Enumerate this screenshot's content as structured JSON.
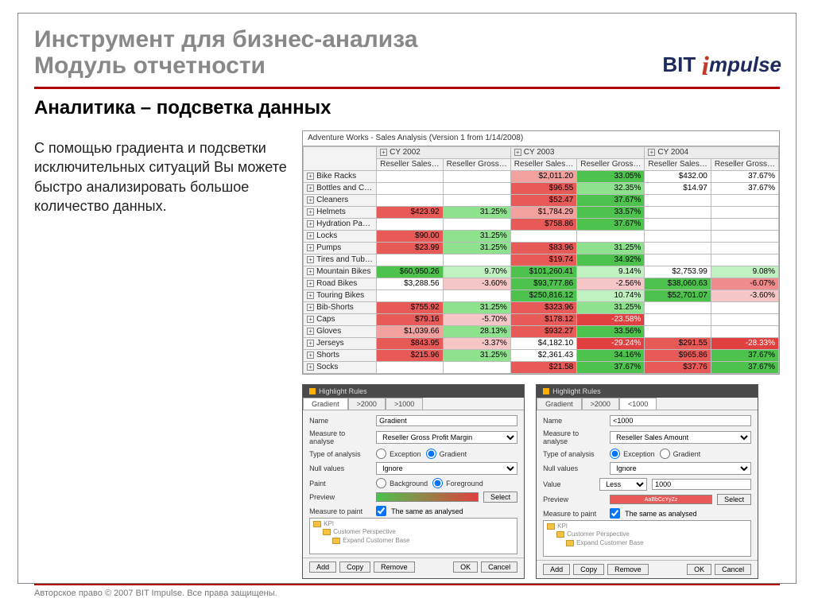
{
  "title_line1": "Инструмент для бизнес-анализа",
  "title_line2": "Модуль отчетности",
  "logo_bit": "BIT",
  "logo_impulse": "mpulse",
  "subtitle": "Аналитика – подсветка данных",
  "description": "С помощью градиента  и подсветки исключительных ситуаций Вы можете быстро анализировать большое количество данных.",
  "table": {
    "window_title": "Adventure Works - Sales Analysis (Version 1 from 1/14/2008)",
    "year_groups": [
      "CY 2002",
      "CY 2003",
      "CY 2004"
    ],
    "sub_columns": [
      "Reseller Sales…",
      "Reseller Gross…"
    ],
    "rows": [
      {
        "label": "Bike Racks",
        "cells": [
          [
            "",
            ""
          ],
          [
            "$2,011.20",
            "33.05%"
          ],
          [
            "$432.00",
            "37.67%"
          ]
        ],
        "cls": [
          [
            "",
            ""
          ],
          [
            "hl-redlt",
            "grad-pos1"
          ],
          [
            "",
            ""
          ]
        ]
      },
      {
        "label": "Bottles and Cag…",
        "cells": [
          [
            "",
            ""
          ],
          [
            "$96.55",
            "32.35%"
          ],
          [
            "$14.97",
            "37.67%"
          ]
        ],
        "cls": [
          [
            "",
            ""
          ],
          [
            "hl-red",
            "grad-pos2"
          ],
          [
            "",
            ""
          ]
        ]
      },
      {
        "label": "Cleaners",
        "cells": [
          [
            "",
            ""
          ],
          [
            "$52.47",
            "37.67%"
          ],
          [
            "",
            ""
          ]
        ],
        "cls": [
          [
            "",
            ""
          ],
          [
            "hl-red",
            "grad-pos1"
          ],
          [
            "",
            ""
          ]
        ]
      },
      {
        "label": "Helmets",
        "cells": [
          [
            "$423.92",
            "31.25%"
          ],
          [
            "$1,784.29",
            "33.57%"
          ],
          [
            "",
            ""
          ]
        ],
        "cls": [
          [
            "hl-red",
            "grad-pos2"
          ],
          [
            "hl-redlt",
            "grad-pos1"
          ],
          [
            "",
            ""
          ]
        ]
      },
      {
        "label": "Hydration Packs",
        "cells": [
          [
            "",
            ""
          ],
          [
            "$758.86",
            "37.67%"
          ],
          [
            "",
            ""
          ]
        ],
        "cls": [
          [
            "",
            ""
          ],
          [
            "hl-red",
            "grad-pos1"
          ],
          [
            "",
            ""
          ]
        ]
      },
      {
        "label": "Locks",
        "cells": [
          [
            "$90.00",
            "31.25%"
          ],
          [
            "",
            ""
          ],
          [
            "",
            ""
          ]
        ],
        "cls": [
          [
            "hl-red",
            "grad-pos2"
          ],
          [
            "",
            ""
          ],
          [
            "",
            ""
          ]
        ]
      },
      {
        "label": "Pumps",
        "cells": [
          [
            "$23.99",
            "31.25%"
          ],
          [
            "$83.96",
            "31.25%"
          ],
          [
            "",
            ""
          ]
        ],
        "cls": [
          [
            "hl-red",
            "grad-pos2"
          ],
          [
            "hl-red",
            "grad-pos2"
          ],
          [
            "",
            ""
          ]
        ]
      },
      {
        "label": "Tires and Tubes",
        "cells": [
          [
            "",
            ""
          ],
          [
            "$19.74",
            "34.92%"
          ],
          [
            "",
            ""
          ]
        ],
        "cls": [
          [
            "",
            ""
          ],
          [
            "hl-red",
            "grad-pos1"
          ],
          [
            "",
            ""
          ]
        ]
      },
      {
        "label": "Mountain Bikes",
        "cells": [
          [
            "$60,950.26",
            "9.70%"
          ],
          [
            "$101,260.41",
            "9.14%"
          ],
          [
            "$2,753.99",
            "9.08%"
          ]
        ],
        "cls": [
          [
            "grad-pos1",
            "grad-pos3"
          ],
          [
            "grad-pos1",
            "grad-pos3"
          ],
          [
            "",
            "grad-pos3"
          ]
        ]
      },
      {
        "label": "Road Bikes",
        "cells": [
          [
            "$3,288.56",
            "-3.60%"
          ],
          [
            "$93,777.86",
            "-2.56%"
          ],
          [
            "$38,060.63",
            "-6.07%"
          ]
        ],
        "cls": [
          [
            "",
            "grad-neg3"
          ],
          [
            "grad-pos1",
            "grad-neg3"
          ],
          [
            "grad-pos1",
            "grad-neg2"
          ]
        ]
      },
      {
        "label": "Touring Bikes",
        "cells": [
          [
            "",
            ""
          ],
          [
            "$250,816.12",
            "10.74%"
          ],
          [
            "$52,701.07",
            "-3.60%"
          ]
        ],
        "cls": [
          [
            "",
            ""
          ],
          [
            "grad-pos1",
            "grad-pos3"
          ],
          [
            "grad-pos1",
            "grad-neg3"
          ]
        ]
      },
      {
        "label": "Bib-Shorts",
        "cells": [
          [
            "$755.92",
            "31.25%"
          ],
          [
            "$323.96",
            "31.25%"
          ],
          [
            "",
            ""
          ]
        ],
        "cls": [
          [
            "hl-red",
            "grad-pos2"
          ],
          [
            "hl-red",
            "grad-pos2"
          ],
          [
            "",
            ""
          ]
        ]
      },
      {
        "label": "Caps",
        "cells": [
          [
            "$79.16",
            "-5.70%"
          ],
          [
            "$178.12",
            "-23.58%"
          ],
          [
            "",
            ""
          ]
        ],
        "cls": [
          [
            "hl-red",
            "grad-neg3"
          ],
          [
            "hl-red",
            "grad-neg1"
          ],
          [
            "",
            ""
          ]
        ]
      },
      {
        "label": "Gloves",
        "cells": [
          [
            "$1,039.66",
            "28.13%"
          ],
          [
            "$932.27",
            "33.56%"
          ],
          [
            "",
            ""
          ]
        ],
        "cls": [
          [
            "hl-redlt",
            "grad-pos2"
          ],
          [
            "hl-red",
            "grad-pos1"
          ],
          [
            "",
            ""
          ]
        ]
      },
      {
        "label": "Jerseys",
        "cells": [
          [
            "$843.95",
            "-3.37%"
          ],
          [
            "$4,182.10",
            "-29.24%"
          ],
          [
            "$291.55",
            "-28.33%"
          ]
        ],
        "cls": [
          [
            "hl-red",
            "grad-neg3"
          ],
          [
            "",
            "grad-neg1"
          ],
          [
            "hl-red",
            "grad-neg1"
          ]
        ]
      },
      {
        "label": "Shorts",
        "cells": [
          [
            "$215.96",
            "31.25%"
          ],
          [
            "$2,361.43",
            "34.16%"
          ],
          [
            "$965.86",
            "37.67%"
          ]
        ],
        "cls": [
          [
            "hl-red",
            "grad-pos2"
          ],
          [
            "",
            "grad-pos1"
          ],
          [
            "hl-red",
            "grad-pos1"
          ]
        ]
      },
      {
        "label": "Socks",
        "cells": [
          [
            "",
            ""
          ],
          [
            "$21.58",
            "37.67%"
          ],
          [
            "$37.76",
            "37.67%"
          ]
        ],
        "cls": [
          [
            "",
            ""
          ],
          [
            "hl-red",
            "grad-pos1"
          ],
          [
            "hl-red",
            "grad-pos1"
          ]
        ]
      }
    ]
  },
  "dialog1": {
    "title": "Highlight Rules",
    "tabs": [
      "Gradient",
      ">2000",
      ">1000"
    ],
    "name_lbl": "Name",
    "name_val": "Gradient",
    "measure_lbl": "Measure to analyse",
    "measure_val": "Reseller Gross Profit Margin",
    "type_lbl": "Type of analysis",
    "type_ex": "Exception",
    "type_gr": "Gradient",
    "null_lbl": "Null values",
    "null_val": "Ignore",
    "paint_lbl": "Paint",
    "paint_bg": "Background",
    "paint_fg": "Foreground",
    "preview_lbl": "Preview",
    "select_btn": "Select",
    "mpaint_lbl": "Measure to paint",
    "mpaint_chk": "The same as analysed",
    "tree": [
      "KPI",
      "Customer Perspective",
      "Expand Customer Base"
    ],
    "add": "Add",
    "copy": "Copy",
    "remove": "Remove",
    "ok": "OK",
    "cancel": "Cancel"
  },
  "dialog2": {
    "title": "Highlight Rules",
    "tabs": [
      "Gradient",
      ">2000",
      "<1000"
    ],
    "name_lbl": "Name",
    "name_val": "<1000",
    "measure_lbl": "Measure to analyse",
    "measure_val": "Reseller Sales Amount",
    "type_lbl": "Type of analysis",
    "type_ex": "Exception",
    "type_gr": "Gradient",
    "null_lbl": "Null values",
    "null_val": "Ignore",
    "value_lbl": "Value",
    "value_cmp": "Less",
    "value_num": "1000",
    "preview_lbl": "Preview",
    "preview_text": "AaBbCcYyZz",
    "select_btn": "Select",
    "mpaint_lbl": "Measure to paint",
    "mpaint_chk": "The same as analysed",
    "tree": [
      "KPI",
      "Customer Perspective",
      "Expand Customer Base"
    ],
    "add": "Add",
    "copy": "Copy",
    "remove": "Remove",
    "ok": "OK",
    "cancel": "Cancel"
  },
  "copyright": "Авторское право © 2007 BIT Impulse. Все права защищены."
}
